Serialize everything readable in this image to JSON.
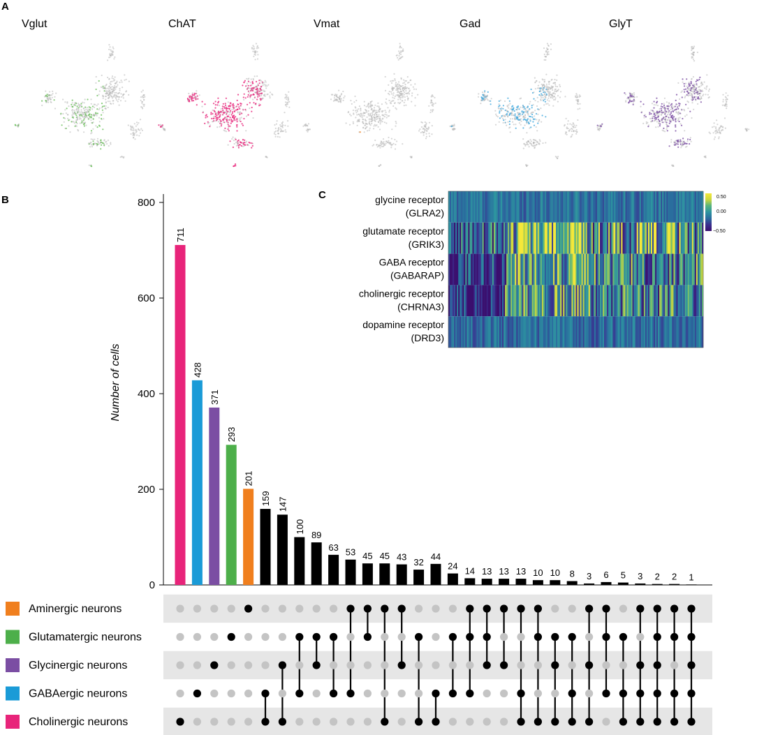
{
  "panel_labels": {
    "a": "A",
    "b": "B",
    "c": "C"
  },
  "panel_a": {
    "maps": [
      {
        "title": "Vglut",
        "color": "#4daf4a",
        "highlight_color": "#6abf5a"
      },
      {
        "title": "ChAT",
        "color": "#e8247a",
        "highlight_color": "#e8247a"
      },
      {
        "title": "Vmat",
        "color": "#f07f1e",
        "highlight_color": "#f07f1e"
      },
      {
        "title": "Gad",
        "color": "#1a9bd7",
        "highlight_color": "#3fa8dd"
      },
      {
        "title": "GlyT",
        "color": "#7b4ea3",
        "highlight_color": "#7b4ea3"
      }
    ],
    "background_point_color": "#b5b5b5"
  },
  "chart_data": [
    {
      "type": "bar",
      "title": "",
      "xlabel": "",
      "ylabel": "Number of cells",
      "ylim": [
        0,
        800
      ],
      "yticks": [
        0,
        200,
        400,
        600,
        800
      ],
      "grid": false,
      "values": [
        711,
        428,
        371,
        293,
        201,
        159,
        147,
        100,
        89,
        63,
        53,
        45,
        45,
        43,
        32,
        44,
        24,
        14,
        13,
        13,
        13,
        10,
        10,
        8,
        3,
        6,
        5,
        3,
        2,
        2,
        1
      ],
      "labels": [
        "711",
        "428",
        "371",
        "293",
        "201",
        "159",
        "147",
        "100",
        "89",
        "63",
        "53",
        "45",
        "45",
        "43",
        "32",
        "44",
        "24",
        "14",
        "13",
        "13",
        "13",
        "10",
        "10",
        "8",
        "3",
        "6",
        "5",
        "3",
        "2",
        "2",
        "1"
      ],
      "colors": [
        "#e8247a",
        "#1a9bd7",
        "#7b4ea3",
        "#4daf4a",
        "#f07f1e",
        "#000000",
        "#000000",
        "#000000",
        "#000000",
        "#000000",
        "#000000",
        "#000000",
        "#000000",
        "#000000",
        "#000000",
        "#000000",
        "#000000",
        "#000000",
        "#000000",
        "#000000",
        "#000000",
        "#000000",
        "#000000",
        "#000000",
        "#000000",
        "#000000",
        "#000000",
        "#000000",
        "#000000",
        "#000000",
        "#000000"
      ],
      "sets": [
        {
          "name": "Aminergic neurons",
          "color": "#f07f1e"
        },
        {
          "name": "Glutamatergic neurons",
          "color": "#4daf4a"
        },
        {
          "name": "Glycinergic neurons",
          "color": "#7b4ea3"
        },
        {
          "name": "GABAergic neurons",
          "color": "#1a9bd7"
        },
        {
          "name": "Cholinergic neurons",
          "color": "#e8247a"
        }
      ],
      "memberships": [
        [
          4
        ],
        [
          3
        ],
        [
          2
        ],
        [
          1
        ],
        [
          0
        ],
        [
          3,
          4
        ],
        [
          2,
          4
        ],
        [
          1,
          3
        ],
        [
          1,
          2
        ],
        [
          1,
          3
        ],
        [
          0,
          3
        ],
        [
          0,
          1
        ],
        [
          0,
          4
        ],
        [
          0,
          2
        ],
        [
          1,
          4
        ],
        [
          3,
          4
        ],
        [
          1,
          3
        ],
        [
          0,
          1,
          3
        ],
        [
          0,
          1,
          2
        ],
        [
          0,
          2
        ],
        [
          0,
          3,
          4
        ],
        [
          0,
          1,
          4
        ],
        [
          1,
          2,
          4
        ],
        [
          1,
          3,
          4
        ],
        [
          0,
          2,
          4
        ],
        [
          0,
          1,
          3
        ],
        [
          1,
          3,
          4
        ],
        [
          0,
          2,
          3,
          4
        ],
        [
          0,
          1,
          2,
          3,
          4
        ],
        [
          0,
          1,
          3,
          4
        ],
        [
          0,
          1,
          2,
          3,
          4
        ]
      ],
      "inactive_dot_color": "#c4c4c4",
      "active_dot_color": "#000000",
      "stripe_color": "#e6e6e6"
    },
    {
      "type": "heatmap",
      "rows": [
        {
          "line1": "glycine receptor",
          "line2": "(GLRA2)",
          "mean": -0.12,
          "noise": 0.14
        },
        {
          "line1": "glutamate receptor",
          "line2": "(GRIK3)",
          "mean": 0.05,
          "noise": 0.55
        },
        {
          "line1": "GABA receptor",
          "line2": "(GABARAP)",
          "mean": -0.05,
          "noise": 0.45
        },
        {
          "line1": "cholinergic receptor",
          "line2": "(CHRNA3)",
          "mean": -0.1,
          "noise": 0.42
        },
        {
          "line1": "dopamine receptor",
          "line2": "(DRD3)",
          "mean": -0.15,
          "noise": 0.15
        }
      ],
      "scale": {
        "min": -0.5,
        "max": 0.5,
        "ticks": [
          "0.50",
          "0.00",
          "−0.50"
        ]
      },
      "colormap": [
        "#3a0f6e",
        "#3b2f8f",
        "#2a6a9e",
        "#2d94a0",
        "#57b47f",
        "#c8d640",
        "#f5e83a"
      ]
    }
  ]
}
